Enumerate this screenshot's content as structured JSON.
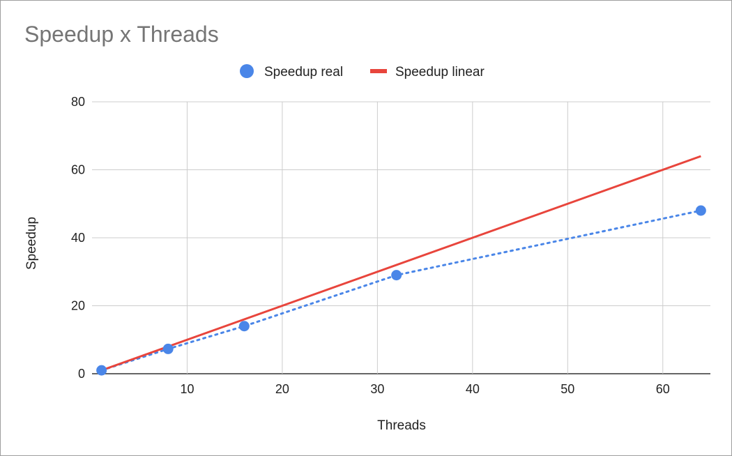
{
  "chart_data": {
    "type": "scatter",
    "title": "Speedup x Threads",
    "xlabel": "Threads",
    "ylabel": "Speedup",
    "xlim": [
      0,
      65
    ],
    "ylim": [
      0,
      80
    ],
    "xticks": [
      10,
      20,
      30,
      40,
      50,
      60
    ],
    "yticks": [
      0,
      20,
      40,
      60,
      80
    ],
    "grid": true,
    "legend_position": "top",
    "series": [
      {
        "name": "Speedup real",
        "kind": "points-with-dotted-trendline",
        "color": "#4a86e8",
        "x": [
          1,
          8,
          16,
          32,
          64
        ],
        "y": [
          1,
          7.3,
          14,
          29,
          48
        ]
      },
      {
        "name": "Speedup linear",
        "kind": "line",
        "color": "#e8453c",
        "x": [
          1,
          64
        ],
        "y": [
          1,
          64
        ]
      }
    ]
  }
}
